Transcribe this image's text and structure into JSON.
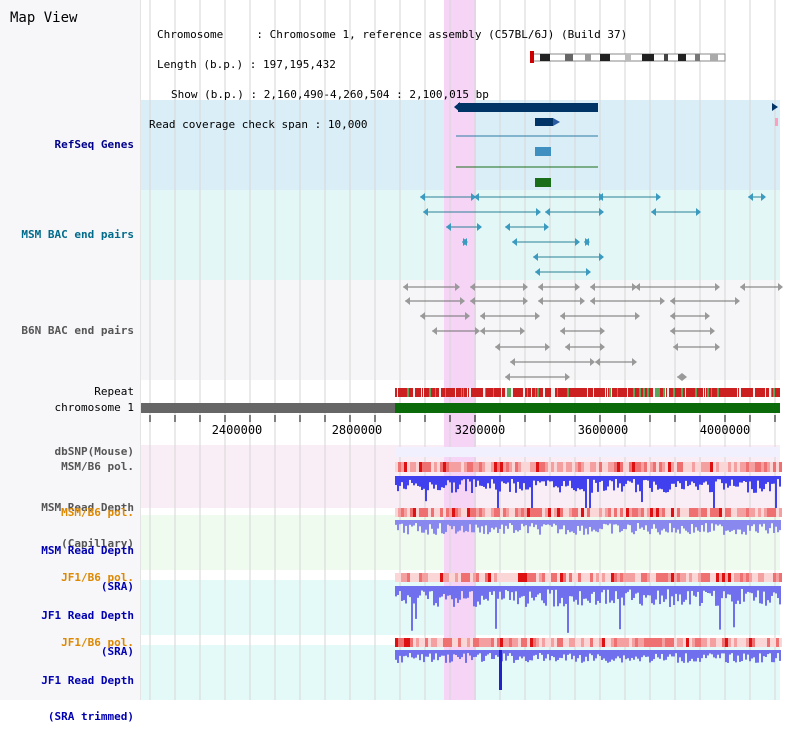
{
  "window": {
    "title": "Map View"
  },
  "info": {
    "chromosome_key": "Chromosome",
    "chromosome_value": ": Chromosome 1, reference assembly (C57BL/6J) (Build 37)",
    "length_key": "Length (b.p.)",
    "length_value": ": 197,195,432",
    "show_key": "Show (b.p.)",
    "show_value": ": 2,160,490-4,260,504 : 2,100,015 bp",
    "coverage_key": "Read coverage check span",
    "coverage_value": ": 10,000"
  },
  "tracks": {
    "refseq": "RefSeq Genes",
    "msm_bac": "MSM BAC end pairs",
    "b6n_bac": "B6N BAC end pairs",
    "repeat": "Repeat",
    "chromosome": "chromosome 1",
    "dbsnp": "dbSNP(Mouse)",
    "msm_b6_pol": "MSM/B6 pol.",
    "msm_depth_cap_1": "MSM Read Depth",
    "msm_depth_cap_2": "(Capillary)",
    "msm_b6_pol_2": "MSM/B6 pol.",
    "msm_depth_sra_1": "MSM Read Depth",
    "msm_depth_sra_2": "(SRA)",
    "jf1_b6_pol": "JF1/B6 pol.",
    "jf1_depth_sra_1": "JF1 Read Depth",
    "jf1_depth_sra_2": "(SRA)",
    "jf1_b6_pol_2": "JF1/B6 pol.",
    "jf1_depth_trim_1": "JF1 Read Depth",
    "jf1_depth_trim_2": "(SRA trimmed)"
  },
  "axis": {
    "ticks": [
      "2400000",
      "2800000",
      "3200000",
      "3600000",
      "4000000"
    ]
  },
  "colors": {
    "refseq_label": "#00008b",
    "msm_bac_label": "#006b8b",
    "b6n_label": "#555555",
    "orange_label": "#dd8800",
    "blue_label": "#0000b0",
    "highlight": "#f5d4f5"
  }
}
